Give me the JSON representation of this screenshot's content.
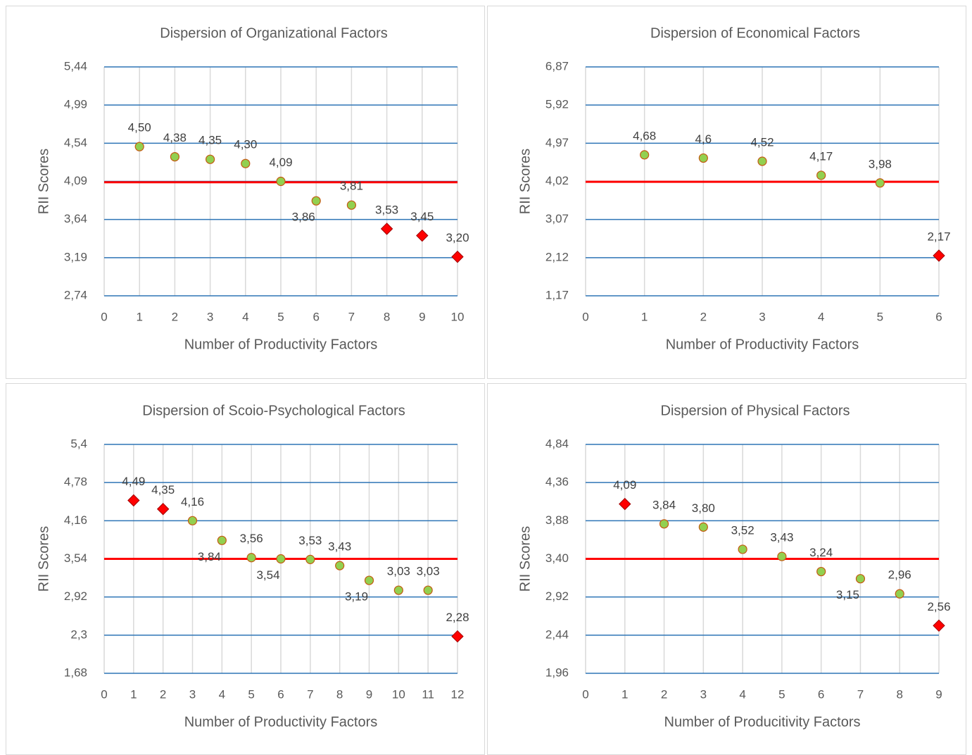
{
  "chart_data": [
    {
      "type": "scatter",
      "title": "Dispersion of Organizational Factors",
      "x_label": "Number of Productivity Factors",
      "y_label": "RII Scores",
      "xlim": [
        0,
        10
      ],
      "xticks": [
        0,
        1,
        2,
        3,
        4,
        5,
        6,
        7,
        8,
        9,
        10
      ],
      "ylim": [
        2.74,
        5.44
      ],
      "yticks": [
        {
          "value": 2.74,
          "label": "2,74"
        },
        {
          "value": 3.19,
          "label": "3,19"
        },
        {
          "value": 3.64,
          "label": "3,64"
        },
        {
          "value": 4.09,
          "label": "4,09"
        },
        {
          "value": 4.54,
          "label": "4,54"
        },
        {
          "value": 4.99,
          "label": "4,99"
        },
        {
          "value": 5.44,
          "label": "5,44"
        }
      ],
      "grid": true,
      "grid_color": "#2e75b6",
      "reference_line": {
        "value": 4.08,
        "color": "#ff0000"
      },
      "series": [
        {
          "x": [
            1,
            2,
            3,
            4,
            5,
            6,
            7,
            8,
            9,
            10
          ],
          "values": [
            4.5,
            4.38,
            4.35,
            4.3,
            4.09,
            3.86,
            3.81,
            3.53,
            3.45,
            3.2
          ],
          "value_labels": [
            "4,50",
            "4,38",
            "4,35",
            "4,30",
            "4,09",
            "3,86",
            "3,81",
            "3,53",
            "3,45",
            "3,20"
          ],
          "markers": [
            "circle",
            "circle",
            "circle",
            "circle",
            "circle",
            "circle",
            "circle",
            "diamond",
            "diamond",
            "diamond"
          ],
          "colors": [
            "#92d050",
            "#92d050",
            "#92d050",
            "#92d050",
            "#92d050",
            "#92d050",
            "#92d050",
            "#ff0000",
            "#ff0000",
            "#ff0000"
          ]
        }
      ]
    },
    {
      "type": "scatter",
      "title": "Dispersion of Economical Factors",
      "x_label": "Number of Productivity Factors",
      "y_label": "RII Scores",
      "xlim": [
        0,
        6
      ],
      "xticks": [
        0,
        1,
        2,
        3,
        4,
        5,
        6
      ],
      "ylim": [
        1.17,
        6.87
      ],
      "yticks": [
        {
          "value": 1.17,
          "label": "1,17"
        },
        {
          "value": 2.12,
          "label": "2,12"
        },
        {
          "value": 3.07,
          "label": "3,07"
        },
        {
          "value": 4.02,
          "label": "4,02"
        },
        {
          "value": 4.97,
          "label": "4,97"
        },
        {
          "value": 5.92,
          "label": "5,92"
        },
        {
          "value": 6.87,
          "label": "6,87"
        }
      ],
      "grid": true,
      "grid_color": "#2e75b6",
      "reference_line": {
        "value": 4.01,
        "color": "#ff0000"
      },
      "series": [
        {
          "x": [
            1,
            2,
            3,
            4,
            5,
            6
          ],
          "values": [
            4.68,
            4.6,
            4.52,
            4.17,
            3.98,
            2.17
          ],
          "value_labels": [
            "4,68",
            "4,6",
            "4,52",
            "4,17",
            "3,98",
            "2,17"
          ],
          "markers": [
            "circle",
            "circle",
            "circle",
            "circle",
            "circle",
            "diamond"
          ],
          "colors": [
            "#92d050",
            "#92d050",
            "#92d050",
            "#92d050",
            "#92d050",
            "#ff0000"
          ]
        }
      ]
    },
    {
      "type": "scatter",
      "title": "Dispersion of Scoio-Psychological Factors",
      "x_label": "Number of Productivity Factors",
      "y_label": "RII Scores",
      "xlim": [
        0,
        12
      ],
      "xticks": [
        0,
        1,
        2,
        3,
        4,
        5,
        6,
        7,
        8,
        9,
        10,
        11,
        12
      ],
      "ylim": [
        1.68,
        5.4
      ],
      "yticks": [
        {
          "value": 1.68,
          "label": "1,68"
        },
        {
          "value": 2.3,
          "label": "2,3"
        },
        {
          "value": 2.92,
          "label": "2,92"
        },
        {
          "value": 3.54,
          "label": "3,54"
        },
        {
          "value": 4.16,
          "label": "4,16"
        },
        {
          "value": 4.78,
          "label": "4,78"
        },
        {
          "value": 5.4,
          "label": "5,4"
        }
      ],
      "grid": true,
      "grid_color": "#2e75b6",
      "reference_line": {
        "value": 3.54,
        "color": "#ff0000"
      },
      "series": [
        {
          "x": [
            1,
            2,
            3,
            4,
            5,
            6,
            7,
            8,
            9,
            10,
            11,
            12
          ],
          "values": [
            4.49,
            4.35,
            4.16,
            3.84,
            3.56,
            3.54,
            3.53,
            3.43,
            3.19,
            3.03,
            3.03,
            2.28
          ],
          "value_labels": [
            "4,49",
            "4,35",
            "4,16",
            "3,84",
            "3,56",
            "3,54",
            "3,53",
            "3,43",
            "3,19",
            "3,03",
            "3,03",
            "2,28"
          ],
          "markers": [
            "diamond",
            "diamond",
            "circle",
            "circle",
            "circle",
            "circle",
            "circle",
            "circle",
            "circle",
            "circle",
            "circle",
            "diamond"
          ],
          "colors": [
            "#ff0000",
            "#ff0000",
            "#92d050",
            "#92d050",
            "#92d050",
            "#92d050",
            "#92d050",
            "#92d050",
            "#92d050",
            "#92d050",
            "#92d050",
            "#ff0000"
          ]
        }
      ]
    },
    {
      "type": "scatter",
      "title": "Dispersion of Physical Factors",
      "x_label": "Number of Producitivity Factors",
      "y_label": "RII Scores",
      "xlim": [
        0,
        9
      ],
      "xticks": [
        0,
        1,
        2,
        3,
        4,
        5,
        6,
        7,
        8,
        9
      ],
      "ylim": [
        1.96,
        4.84
      ],
      "yticks": [
        {
          "value": 1.96,
          "label": "1,96"
        },
        {
          "value": 2.44,
          "label": "2,44"
        },
        {
          "value": 2.92,
          "label": "2,92"
        },
        {
          "value": 3.4,
          "label": "3,40"
        },
        {
          "value": 3.88,
          "label": "3,88"
        },
        {
          "value": 4.36,
          "label": "4,36"
        },
        {
          "value": 4.84,
          "label": "4,84"
        }
      ],
      "grid": true,
      "grid_color": "#2e75b6",
      "reference_line": {
        "value": 3.4,
        "color": "#ff0000"
      },
      "series": [
        {
          "x": [
            1,
            2,
            3,
            4,
            5,
            6,
            7,
            8,
            9
          ],
          "values": [
            4.09,
            3.84,
            3.8,
            3.52,
            3.43,
            3.24,
            3.15,
            2.96,
            2.56
          ],
          "value_labels": [
            "4,09",
            "3,84",
            "3,80",
            "3,52",
            "3,43",
            "3,24",
            "3,15",
            "2,96",
            "2,56"
          ],
          "markers": [
            "diamond",
            "circle",
            "circle",
            "circle",
            "circle",
            "circle",
            "circle",
            "circle",
            "diamond"
          ],
          "colors": [
            "#ff0000",
            "#92d050",
            "#92d050",
            "#92d050",
            "#92d050",
            "#92d050",
            "#92d050",
            "#92d050",
            "#ff0000"
          ]
        }
      ]
    }
  ]
}
